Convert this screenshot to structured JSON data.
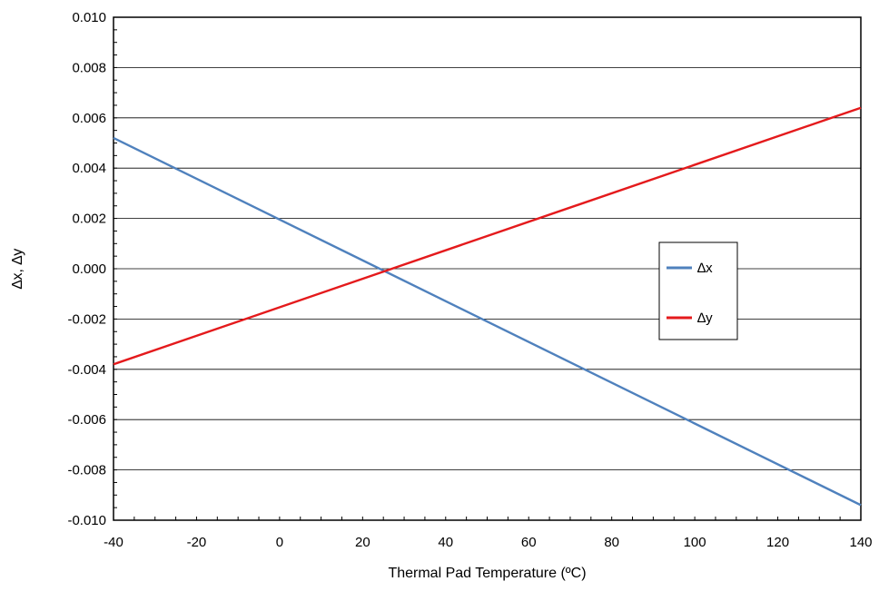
{
  "chart_data": {
    "type": "line",
    "title": "",
    "xlabel": "Thermal Pad Temperature (ºC)",
    "ylabel": "∆x, ∆y",
    "xlim": [
      -40,
      140
    ],
    "ylim": [
      -0.01,
      0.01
    ],
    "x_ticks": [
      "-40",
      "-20",
      "0",
      "20",
      "40",
      "60",
      "80",
      "100",
      "120",
      "140"
    ],
    "y_ticks": [
      "0.010",
      "0.008",
      "0.006",
      "0.004",
      "0.002",
      "0.000",
      "-0.002",
      "-0.004",
      "-0.006",
      "-0.008",
      "-0.010"
    ],
    "grid": "horizontal",
    "legend_position": "right",
    "series": [
      {
        "name": "∆x",
        "color": "#4F81BD",
        "x": [
          -40,
          140
        ],
        "y": [
          0.0052,
          -0.0094
        ]
      },
      {
        "name": "∆y",
        "color": "#E41A1C",
        "x": [
          -40,
          140
        ],
        "y": [
          -0.0038,
          0.0064
        ]
      }
    ]
  }
}
